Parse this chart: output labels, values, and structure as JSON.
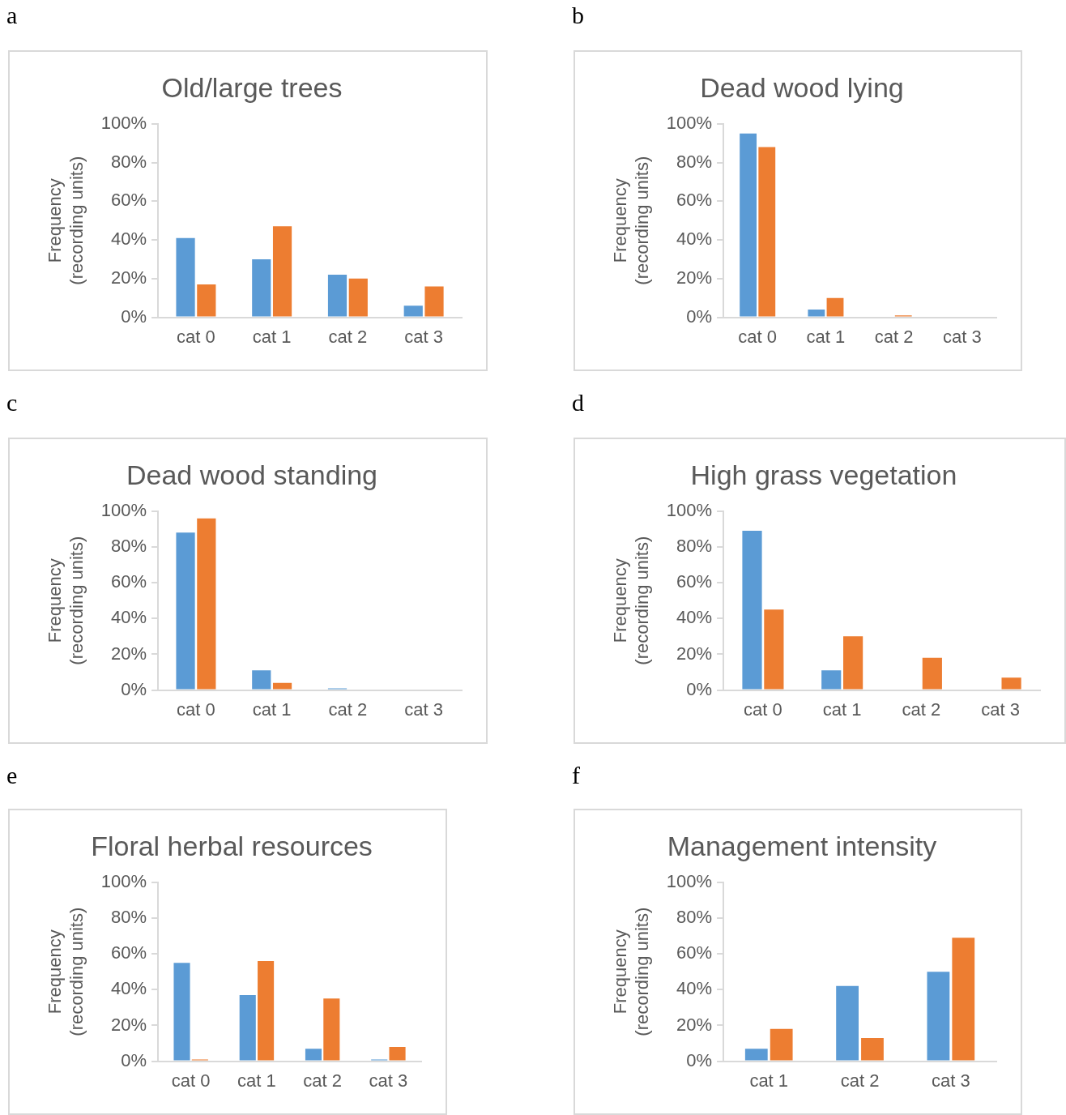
{
  "chart_data": [
    {
      "type": "bar",
      "title": "Old/large trees",
      "ylabel": "Frequency (recording units)",
      "annotations": [
        "a"
      ],
      "categories": [
        "cat 0",
        "cat 1",
        "cat 2",
        "cat 3"
      ],
      "series": [
        {
          "color": "#5b9bd5",
          "values": [
            41,
            30,
            22,
            6
          ]
        },
        {
          "color": "#ed7d31",
          "values": [
            17,
            47,
            20,
            16
          ]
        }
      ],
      "ylim": [
        0,
        100
      ],
      "yticks": [
        {
          "value": 0,
          "label": "0%"
        },
        {
          "value": 20,
          "label": "20%"
        },
        {
          "value": 40,
          "label": "40%"
        },
        {
          "value": 60,
          "label": "60%"
        },
        {
          "value": 80,
          "label": "80%"
        },
        {
          "value": 100,
          "label": "100%"
        }
      ]
    },
    {
      "type": "bar",
      "title": "Dead wood lying",
      "ylabel": "Frequency (recording units)",
      "annotations": [
        "b"
      ],
      "categories": [
        "cat 0",
        "cat 1",
        "cat 2",
        "cat 3"
      ],
      "series": [
        {
          "color": "#5b9bd5",
          "values": [
            95,
            4,
            0,
            0
          ]
        },
        {
          "color": "#ed7d31",
          "values": [
            88,
            10,
            1,
            0
          ]
        }
      ],
      "ylim": [
        0,
        100
      ],
      "yticks": [
        {
          "value": 0,
          "label": "0%"
        },
        {
          "value": 20,
          "label": "20%"
        },
        {
          "value": 40,
          "label": "40%"
        },
        {
          "value": 60,
          "label": "60%"
        },
        {
          "value": 80,
          "label": "80%"
        },
        {
          "value": 100,
          "label": "100%"
        }
      ]
    },
    {
      "type": "bar",
      "title": "Dead wood standing",
      "ylabel": "Frequency (recording units)",
      "annotations": [
        "c"
      ],
      "categories": [
        "cat 0",
        "cat 1",
        "cat 2",
        "cat 3"
      ],
      "series": [
        {
          "color": "#5b9bd5",
          "values": [
            88,
            11,
            1,
            0
          ]
        },
        {
          "color": "#ed7d31",
          "values": [
            96,
            4,
            0,
            0
          ]
        }
      ],
      "ylim": [
        0,
        100
      ],
      "yticks": [
        {
          "value": 0,
          "label": "0%"
        },
        {
          "value": 20,
          "label": "20%"
        },
        {
          "value": 40,
          "label": "40%"
        },
        {
          "value": 60,
          "label": "60%"
        },
        {
          "value": 80,
          "label": "80%"
        },
        {
          "value": 100,
          "label": "100%"
        }
      ]
    },
    {
      "type": "bar",
      "title": "High grass vegetation",
      "ylabel": "Frequency (recording units)",
      "annotations": [
        "d"
      ],
      "categories": [
        "cat 0",
        "cat 1",
        "cat 2",
        "cat 3"
      ],
      "series": [
        {
          "color": "#5b9bd5",
          "values": [
            89,
            11,
            0,
            0
          ]
        },
        {
          "color": "#ed7d31",
          "values": [
            45,
            30,
            18,
            7
          ]
        }
      ],
      "ylim": [
        0,
        100
      ],
      "yticks": [
        {
          "value": 0,
          "label": "0%"
        },
        {
          "value": 20,
          "label": "20%"
        },
        {
          "value": 40,
          "label": "40%"
        },
        {
          "value": 60,
          "label": "60%"
        },
        {
          "value": 80,
          "label": "80%"
        },
        {
          "value": 100,
          "label": "100%"
        }
      ]
    },
    {
      "type": "bar",
      "title": "Floral herbal resources",
      "ylabel": "Frequency (recording units)",
      "annotations": [
        "e"
      ],
      "categories": [
        "cat 0",
        "cat 1",
        "cat 2",
        "cat 3"
      ],
      "series": [
        {
          "color": "#5b9bd5",
          "values": [
            55,
            37,
            7,
            1
          ]
        },
        {
          "color": "#ed7d31",
          "values": [
            1,
            56,
            35,
            8
          ]
        }
      ],
      "ylim": [
        0,
        100
      ],
      "yticks": [
        {
          "value": 0,
          "label": "0%"
        },
        {
          "value": 20,
          "label": "20%"
        },
        {
          "value": 40,
          "label": "40%"
        },
        {
          "value": 60,
          "label": "60%"
        },
        {
          "value": 80,
          "label": "80%"
        },
        {
          "value": 100,
          "label": "100%"
        }
      ]
    },
    {
      "type": "bar",
      "title": "Management intensity",
      "ylabel": "Frequency (recording units)",
      "annotations": [
        "f"
      ],
      "categories": [
        "cat 1",
        "cat 2",
        "cat 3"
      ],
      "series": [
        {
          "color": "#5b9bd5",
          "values": [
            7,
            42,
            50
          ]
        },
        {
          "color": "#ed7d31",
          "values": [
            18,
            13,
            69
          ]
        }
      ],
      "ylim": [
        0,
        100
      ],
      "yticks": [
        {
          "value": 0,
          "label": "0%"
        },
        {
          "value": 20,
          "label": "20%"
        },
        {
          "value": 40,
          "label": "40%"
        },
        {
          "value": 60,
          "label": "60%"
        },
        {
          "value": 80,
          "label": "80%"
        },
        {
          "value": 100,
          "label": "100%"
        }
      ]
    }
  ]
}
